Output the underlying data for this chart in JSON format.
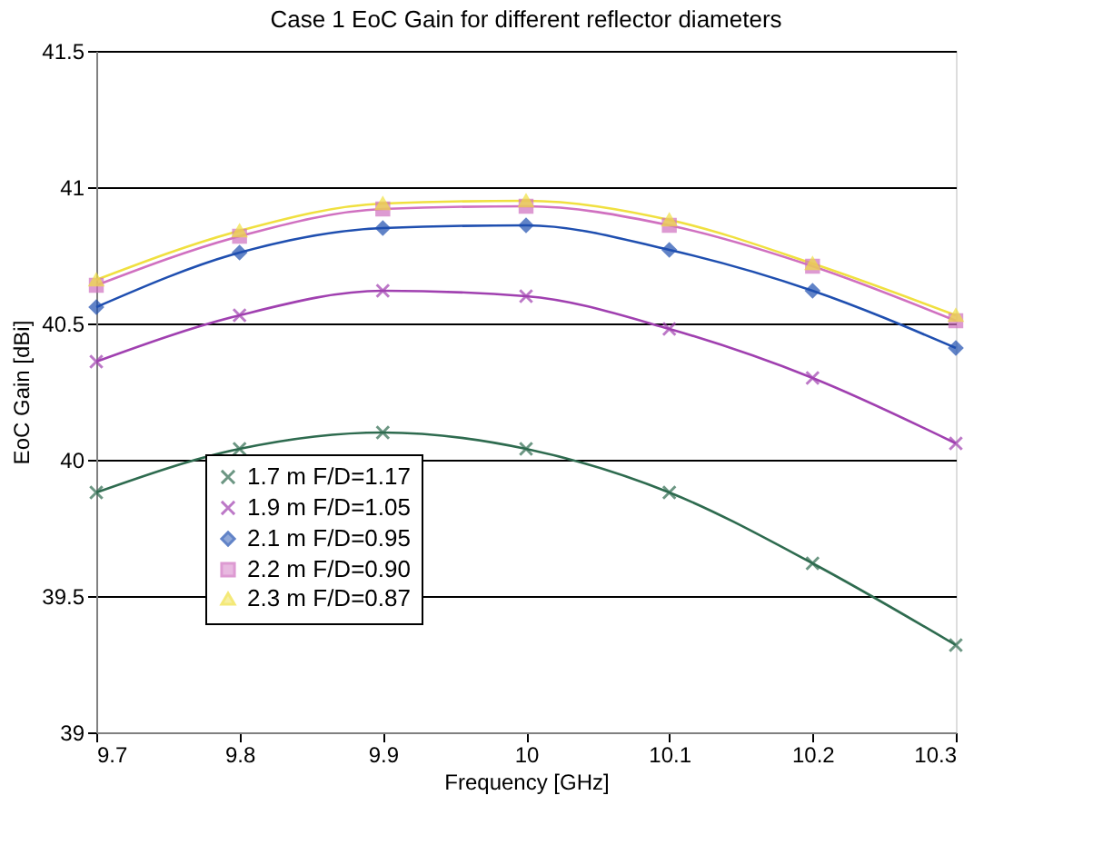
{
  "chart_data": {
    "type": "line",
    "title": "Case 1 EoC Gain for different reflector diameters",
    "xlabel": "Frequency  [GHz]",
    "ylabel": "EoC Gain  [dBi]",
    "x": [
      9.7,
      9.8,
      9.9,
      10,
      10.1,
      10.2,
      10.3
    ],
    "xlim": [
      9.7,
      10.3
    ],
    "xticks": [
      9.7,
      9.8,
      9.9,
      10,
      10.1,
      10.2,
      10.3
    ],
    "ylim": [
      39,
      41.5
    ],
    "yticks": [
      39,
      39.5,
      40,
      40.5,
      41,
      41.5
    ],
    "grid": "y",
    "legend": "bottom left",
    "series": [
      {
        "name": "1.7 m F/D=1.17",
        "color": "#2e6b4f",
        "marker": "cross",
        "values": [
          39.88,
          40.04,
          40.1,
          40.04,
          39.88,
          39.62,
          39.32
        ]
      },
      {
        "name": "1.9 m F/D=1.05",
        "color": "#a040b0",
        "marker": "cross",
        "values": [
          40.36,
          40.53,
          40.62,
          40.6,
          40.48,
          40.3,
          40.06
        ]
      },
      {
        "name": "2.1 m F/D=0.95",
        "color": "#1f4fb0",
        "marker": "diamond",
        "values": [
          40.56,
          40.76,
          40.85,
          40.86,
          40.77,
          40.62,
          40.41
        ]
      },
      {
        "name": "2.2 m F/D=0.90",
        "color": "#d070c0",
        "marker": "square",
        "values": [
          40.64,
          40.82,
          40.92,
          40.93,
          40.86,
          40.71,
          40.51
        ]
      },
      {
        "name": "2.3 m F/D=0.87",
        "color": "#f0e040",
        "marker": "triangle",
        "values": [
          40.66,
          40.84,
          40.94,
          40.95,
          40.88,
          40.72,
          40.53
        ]
      }
    ]
  }
}
